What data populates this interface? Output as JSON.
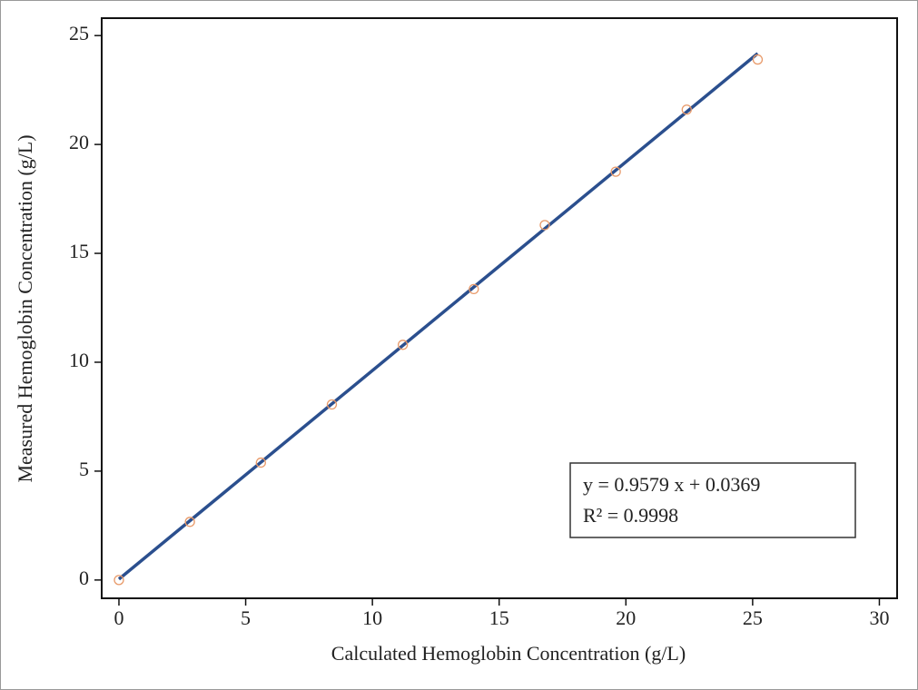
{
  "chart_data": {
    "type": "scatter",
    "x_label": "Calculated Hemoglobin Concentration (g/L)",
    "y_label": "Measured Hemoglobin Concentration (g/L)",
    "annotations": [
      "y = 0.9579 x + 0.0369",
      "R² = 0.9998"
    ],
    "xlim": [
      -0.68,
      30.7
    ],
    "ylim": [
      -0.84,
      25.8
    ],
    "xticks": [
      0,
      5,
      10,
      15,
      20,
      25,
      30
    ],
    "yticks": [
      0,
      5,
      10,
      15,
      20,
      25
    ],
    "series": [
      {
        "mark": "scatter",
        "color": "#e89a6a",
        "x": [
          0,
          2.8,
          5.6,
          8.4,
          11.2,
          14.0,
          16.8,
          19.6,
          22.4,
          25.2
        ],
        "values": [
          0,
          2.67,
          5.39,
          8.06,
          10.8,
          13.36,
          16.3,
          18.75,
          21.6,
          23.9
        ]
      },
      {
        "mark": "line",
        "color": "#2b4f8e",
        "x": [
          0,
          25.2
        ],
        "values": [
          0.04,
          24.18
        ]
      }
    ]
  }
}
